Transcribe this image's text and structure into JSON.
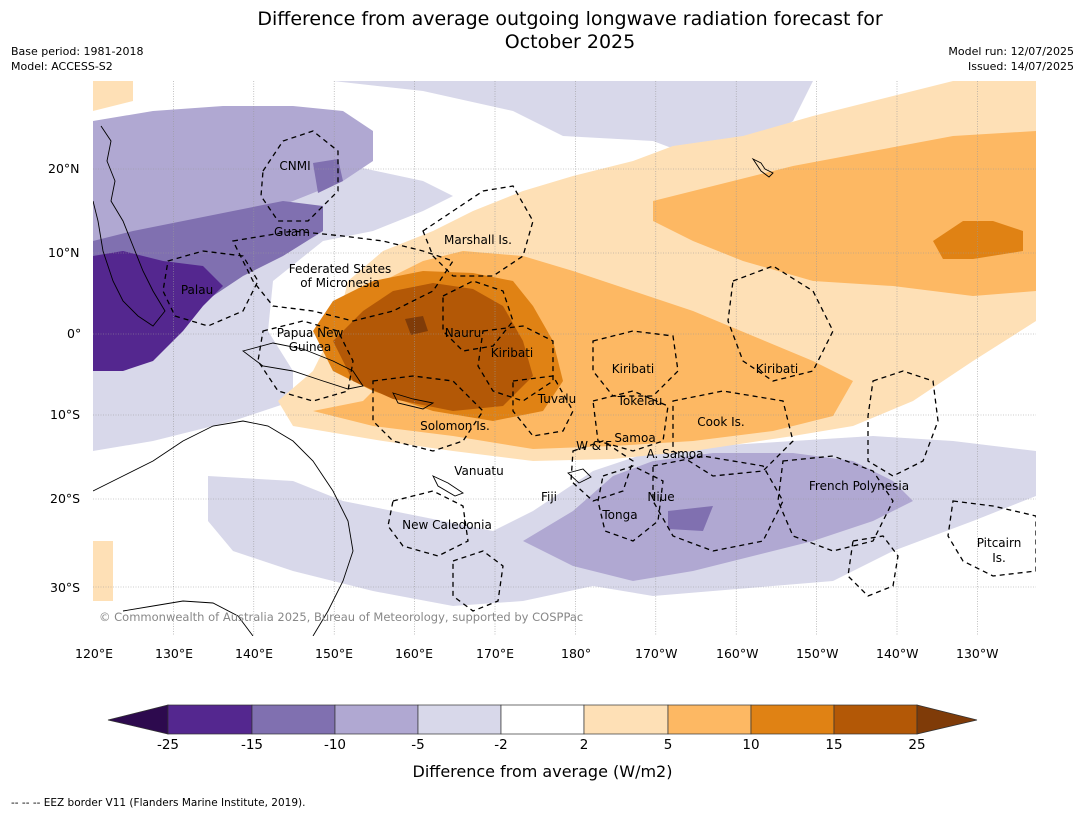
{
  "title_line1": "Difference from average outgoing longwave radiation forecast for",
  "title_line2": "October 2025",
  "meta": {
    "base_period": "Base period: 1981-2018",
    "model": "Model: ACCESS-S2",
    "model_run": "Model run: 12/07/2025",
    "issued": "Issued: 14/07/2025"
  },
  "map": {
    "lon_ticks": [
      "120°E",
      "130°E",
      "140°E",
      "150°E",
      "160°E",
      "170°E",
      "180°",
      "170°W",
      "160°W",
      "150°W",
      "140°W",
      "130°W"
    ],
    "lat_ticks": [
      "20°N",
      "10°N",
      "0°",
      "10°S",
      "20°S",
      "30°S"
    ],
    "copyright": "© Commonwealth of Australia 2025, Bureau of Meteorology, supported by COSPPac",
    "regions": [
      "CNMI",
      "Guam",
      "Marshall Is.",
      "Federated States",
      "of Micronesia",
      "Palau",
      "Papua New",
      "Guinea",
      "Nauru",
      "Kiribati",
      "Kiribati",
      "Kiribati",
      "Tuvalu",
      "Tokelau",
      "Solomon Is.",
      "Cook Is.",
      "W & F",
      "Samoa",
      "A. Samoa",
      "Vanuatu",
      "Fiji",
      "Niue",
      "Tonga",
      "French Polynesia",
      "New Caledonia",
      "Pitcairn",
      "Is."
    ]
  },
  "colorbar": {
    "label": "Difference from average (W/m2)",
    "ticks": [
      "-25",
      "-15",
      "-10",
      "-5",
      "-2",
      "2",
      "5",
      "10",
      "15",
      "25"
    ],
    "colors": {
      "lt_minus25": "#2d0a4e",
      "m25_m15": "#54278f",
      "m15_m10": "#8070b0",
      "m10_m5": "#b0a8d2",
      "m5_m2": "#d8d8ea",
      "m2_p2": "#ffffff",
      "p2_p5": "#fee0b6",
      "p5_p10": "#fdb863",
      "p10_p15": "#e08214",
      "p15_p25": "#b35806",
      "gt_p25": "#7f3b08"
    }
  },
  "footnote": "--  --  -- EEZ border V11 (Flanders Marine Institute, 2019)."
}
